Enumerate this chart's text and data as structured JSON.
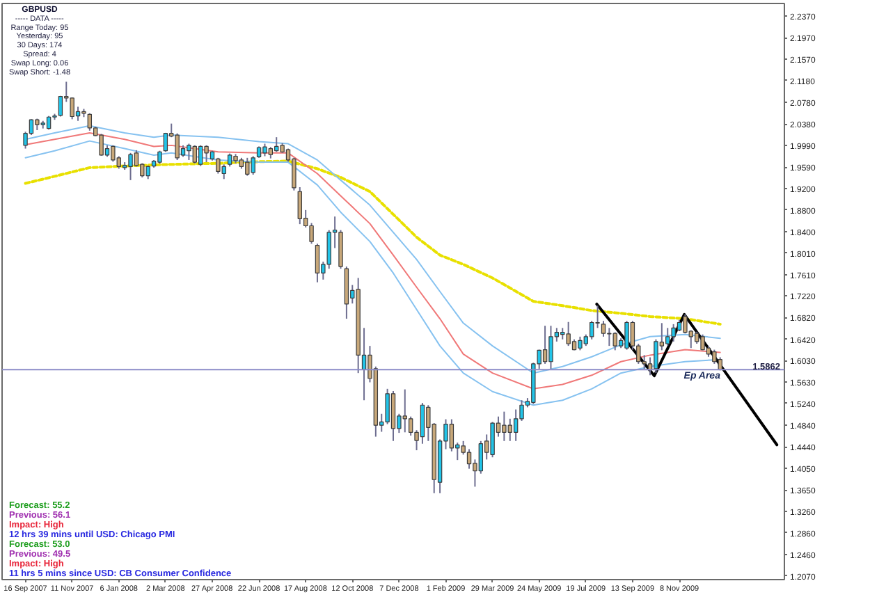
{
  "chart_data": {
    "type": "candlestick",
    "title": "GBPUSD",
    "x": [
      "2007-09-16",
      "2007-09-23",
      "2007-09-30",
      "2007-10-07",
      "2007-10-14",
      "2007-10-21",
      "2007-10-28",
      "2007-11-04",
      "2007-11-11",
      "2007-11-18",
      "2007-11-25",
      "2007-12-02",
      "2007-12-09",
      "2007-12-16",
      "2007-12-23",
      "2007-12-30",
      "2008-01-06",
      "2008-01-13",
      "2008-01-20",
      "2008-01-27",
      "2008-02-03",
      "2008-02-10",
      "2008-02-17",
      "2008-02-24",
      "2008-03-02",
      "2008-03-09",
      "2008-03-16",
      "2008-03-23",
      "2008-03-30",
      "2008-04-06",
      "2008-04-13",
      "2008-04-20",
      "2008-04-27",
      "2008-05-04",
      "2008-05-11",
      "2008-05-18",
      "2008-05-25",
      "2008-06-01",
      "2008-06-08",
      "2008-06-15",
      "2008-06-22",
      "2008-06-29",
      "2008-07-06",
      "2008-07-13",
      "2008-07-20",
      "2008-07-27",
      "2008-08-03",
      "2008-08-10",
      "2008-08-17",
      "2008-08-24",
      "2008-08-31",
      "2008-09-07",
      "2008-09-14",
      "2008-09-21",
      "2008-09-28",
      "2008-10-05",
      "2008-10-12",
      "2008-10-19",
      "2008-10-26",
      "2008-11-02",
      "2008-11-09",
      "2008-11-16",
      "2008-11-23",
      "2008-11-30",
      "2008-12-07",
      "2008-12-14",
      "2008-12-21",
      "2008-12-28",
      "2009-01-04",
      "2009-01-11",
      "2009-01-18",
      "2009-01-25",
      "2009-02-01",
      "2009-02-08",
      "2009-02-15",
      "2009-02-22",
      "2009-03-01",
      "2009-03-08",
      "2009-03-15",
      "2009-03-22",
      "2009-03-29",
      "2009-04-05",
      "2009-04-12",
      "2009-04-19",
      "2009-04-26",
      "2009-05-03",
      "2009-05-10",
      "2009-05-17",
      "2009-05-24",
      "2009-05-31",
      "2009-06-07",
      "2009-06-14",
      "2009-06-21",
      "2009-06-28",
      "2009-07-05",
      "2009-07-12",
      "2009-07-19",
      "2009-07-26",
      "2009-08-02",
      "2009-08-09",
      "2009-08-16",
      "2009-08-23",
      "2009-08-30",
      "2009-09-06",
      "2009-09-13",
      "2009-09-20",
      "2009-09-27",
      "2009-10-04",
      "2009-10-11",
      "2009-10-18",
      "2009-10-25",
      "2009-11-01",
      "2009-11-08",
      "2009-11-15",
      "2009-11-22",
      "2009-11-29",
      "2009-12-06",
      "2009-12-13",
      "2009-12-20",
      "2009-12-27"
    ],
    "ohlc": [
      [
        1.999,
        2.024,
        1.993,
        2.021
      ],
      [
        2.021,
        2.047,
        2.018,
        2.046
      ],
      [
        2.046,
        2.048,
        2.027,
        2.037
      ],
      [
        2.037,
        2.044,
        2.03,
        2.04
      ],
      [
        2.03,
        2.053,
        2.028,
        2.051
      ],
      [
        2.051,
        2.057,
        2.046,
        2.053
      ],
      [
        2.054,
        2.09,
        2.052,
        2.089
      ],
      [
        2.089,
        2.116,
        2.079,
        2.086
      ],
      [
        2.086,
        2.087,
        2.047,
        2.052
      ],
      [
        2.053,
        2.07,
        2.044,
        2.061
      ],
      [
        2.061,
        2.066,
        2.051,
        2.058
      ],
      [
        2.056,
        2.058,
        2.026,
        2.031
      ],
      [
        2.031,
        2.033,
        2.016,
        2.017
      ],
      [
        2.018,
        2.02,
        1.98,
        1.981
      ],
      [
        1.981,
        1.999,
        1.978,
        1.993
      ],
      [
        1.997,
        1.999,
        1.969,
        1.972
      ],
      [
        1.976,
        1.979,
        1.956,
        1.96
      ],
      [
        1.958,
        1.968,
        1.954,
        1.962
      ],
      [
        1.96,
        1.985,
        1.935,
        1.982
      ],
      [
        1.985,
        1.99,
        1.96,
        1.962
      ],
      [
        1.964,
        1.966,
        1.94,
        1.943
      ],
      [
        1.943,
        1.962,
        1.937,
        1.96
      ],
      [
        1.961,
        1.972,
        1.958,
        1.97
      ],
      [
        1.968,
        1.989,
        1.965,
        1.987
      ],
      [
        1.989,
        2.022,
        1.987,
        2.021
      ],
      [
        2.021,
        2.039,
        2.014,
        2.016
      ],
      [
        2.018,
        2.021,
        1.972,
        1.976
      ],
      [
        1.981,
        1.999,
        1.978,
        1.993
      ],
      [
        1.989,
        2.002,
        1.972,
        1.999
      ],
      [
        1.997,
        1.999,
        1.966,
        1.968
      ],
      [
        1.964,
        1.999,
        1.961,
        1.997
      ],
      [
        1.997,
        1.999,
        1.968,
        1.985
      ],
      [
        1.974,
        1.989,
        1.971,
        1.987
      ],
      [
        1.974,
        1.976,
        1.947,
        1.951
      ],
      [
        1.947,
        1.964,
        1.937,
        1.96
      ],
      [
        1.964,
        1.984,
        1.96,
        1.981
      ],
      [
        1.979,
        1.983,
        1.966,
        1.971
      ],
      [
        1.972,
        1.976,
        1.956,
        1.96
      ],
      [
        1.968,
        1.976,
        1.943,
        1.946
      ],
      [
        1.949,
        1.979,
        1.945,
        1.976
      ],
      [
        1.978,
        1.997,
        1.976,
        1.995
      ],
      [
        1.985,
        2.002,
        1.979,
        1.996
      ],
      [
        1.993,
        1.996,
        1.975,
        1.982
      ],
      [
        1.989,
        2.014,
        1.987,
        1.997
      ],
      [
        1.999,
        2.003,
        1.985,
        1.987
      ],
      [
        1.991,
        1.993,
        1.969,
        1.972
      ],
      [
        1.974,
        1.976,
        1.916,
        1.921
      ],
      [
        1.914,
        1.922,
        1.854,
        1.864
      ],
      [
        1.865,
        1.88,
        1.848,
        1.851
      ],
      [
        1.851,
        1.856,
        1.818,
        1.822
      ],
      [
        1.815,
        1.818,
        1.747,
        1.764
      ],
      [
        1.764,
        1.785,
        1.752,
        1.78
      ],
      [
        1.78,
        1.843,
        1.772,
        1.839
      ],
      [
        1.839,
        1.868,
        1.81,
        1.843
      ],
      [
        1.839,
        1.843,
        1.772,
        1.776
      ],
      [
        1.772,
        1.776,
        1.68,
        1.707
      ],
      [
        1.718,
        1.742,
        1.708,
        1.732
      ],
      [
        1.734,
        1.755,
        1.58,
        1.613
      ],
      [
        1.587,
        1.663,
        1.53,
        1.613
      ],
      [
        1.613,
        1.63,
        1.563,
        1.57
      ],
      [
        1.588,
        1.592,
        1.463,
        1.484
      ],
      [
        1.484,
        1.505,
        1.472,
        1.49
      ],
      [
        1.49,
        1.551,
        1.486,
        1.542
      ],
      [
        1.542,
        1.547,
        1.455,
        1.478
      ],
      [
        1.478,
        1.505,
        1.47,
        1.501
      ],
      [
        1.501,
        1.55,
        1.471,
        1.496
      ],
      [
        1.496,
        1.5,
        1.465,
        1.471
      ],
      [
        1.471,
        1.475,
        1.438,
        1.456
      ],
      [
        1.463,
        1.525,
        1.45,
        1.521
      ],
      [
        1.517,
        1.521,
        1.455,
        1.48
      ],
      [
        1.486,
        1.488,
        1.359,
        1.384
      ],
      [
        1.379,
        1.458,
        1.359,
        1.455
      ],
      [
        1.455,
        1.495,
        1.44,
        1.486
      ],
      [
        1.486,
        1.495,
        1.436,
        1.442
      ],
      [
        1.442,
        1.452,
        1.42,
        1.448
      ],
      [
        1.446,
        1.455,
        1.43,
        1.434
      ],
      [
        1.434,
        1.44,
        1.404,
        1.413
      ],
      [
        1.414,
        1.421,
        1.371,
        1.4
      ],
      [
        1.4,
        1.455,
        1.395,
        1.45
      ],
      [
        1.455,
        1.467,
        1.421,
        1.434
      ],
      [
        1.43,
        1.49,
        1.425,
        1.488
      ],
      [
        1.488,
        1.5,
        1.463,
        1.471
      ],
      [
        1.484,
        1.509,
        1.455,
        1.471
      ],
      [
        1.484,
        1.496,
        1.455,
        1.471
      ],
      [
        1.471,
        1.513,
        1.455,
        1.496
      ],
      [
        1.496,
        1.53,
        1.492,
        1.521
      ],
      [
        1.521,
        1.534,
        1.517,
        1.528
      ],
      [
        1.526,
        1.599,
        1.523,
        1.597
      ],
      [
        1.597,
        1.623,
        1.588,
        1.622
      ],
      [
        1.623,
        1.667,
        1.597,
        1.601
      ],
      [
        1.601,
        1.667,
        1.588,
        1.647
      ],
      [
        1.647,
        1.663,
        1.638,
        1.655
      ],
      [
        1.651,
        1.663,
        1.642,
        1.655
      ],
      [
        1.652,
        1.674,
        1.63,
        1.634
      ],
      [
        1.638,
        1.642,
        1.622,
        1.623
      ],
      [
        1.626,
        1.647,
        1.622,
        1.64
      ],
      [
        1.634,
        1.651,
        1.63,
        1.647
      ],
      [
        1.647,
        1.676,
        1.642,
        1.673
      ],
      [
        1.673,
        1.704,
        1.663,
        1.672
      ],
      [
        1.67,
        1.676,
        1.647,
        1.653
      ],
      [
        1.653,
        1.663,
        1.63,
        1.652
      ],
      [
        1.653,
        1.655,
        1.622,
        1.63
      ],
      [
        1.63,
        1.644,
        1.626,
        1.64
      ],
      [
        1.626,
        1.676,
        1.623,
        1.673
      ],
      [
        1.673,
        1.676,
        1.623,
        1.63
      ],
      [
        1.63,
        1.634,
        1.597,
        1.601
      ],
      [
        1.601,
        1.613,
        1.588,
        1.597
      ],
      [
        1.597,
        1.609,
        1.576,
        1.586
      ],
      [
        1.588,
        1.642,
        1.58,
        1.638
      ],
      [
        1.637,
        1.672,
        1.622,
        1.63
      ],
      [
        1.634,
        1.663,
        1.63,
        1.647
      ],
      [
        1.647,
        1.67,
        1.638,
        1.663
      ],
      [
        1.659,
        1.678,
        1.657,
        1.673
      ],
      [
        1.684,
        1.688,
        1.653,
        1.655
      ],
      [
        1.657,
        1.659,
        1.626,
        1.647
      ],
      [
        1.653,
        1.656,
        1.634,
        1.638
      ],
      [
        1.647,
        1.651,
        1.622,
        1.623
      ],
      [
        1.626,
        1.63,
        1.61,
        1.615
      ],
      [
        1.619,
        1.623,
        1.597,
        1.601
      ],
      [
        1.605,
        1.609,
        1.585,
        1.5862
      ]
    ],
    "colors": [
      "#22c4e8",
      "#22c4e8",
      "#c8a87a",
      "#22c4e8",
      "#22c4e8",
      "#22c4e8",
      "#22c4e8",
      "#c8a87a",
      "#c8a87a",
      "#22c4e8",
      "#c8a87a",
      "#c8a87a",
      "#c8a87a",
      "#c8a87a",
      "#22c4e8",
      "#c8a87a",
      "#c8a87a",
      "#22c4e8",
      "#22c4e8",
      "#c8a87a",
      "#c8a87a",
      "#22c4e8",
      "#22c4e8",
      "#22c4e8",
      "#22c4e8",
      "#c8a87a",
      "#c8a87a",
      "#22c4e8",
      "#22c4e8",
      "#c8a87a",
      "#22c4e8",
      "#c8a87a",
      "#22c4e8",
      "#c8a87a",
      "#22c4e8",
      "#22c4e8",
      "#c8a87a",
      "#c8a87a",
      "#c8a87a",
      "#22c4e8",
      "#22c4e8",
      "#22c4e8",
      "#c8a87a",
      "#22c4e8",
      "#c8a87a",
      "#c8a87a",
      "#c8a87a",
      "#c8a87a",
      "#c8a87a",
      "#c8a87a",
      "#c8a87a",
      "#22c4e8",
      "#22c4e8",
      "#22c4e8",
      "#c8a87a",
      "#c8a87a",
      "#22c4e8",
      "#c8a87a",
      "#22c4e8",
      "#c8a87a",
      "#c8a87a",
      "#22c4e8",
      "#22c4e8",
      "#c8a87a",
      "#22c4e8",
      "#c8a87a",
      "#c8a87a",
      "#c8a87a",
      "#22c4e8",
      "#c8a87a",
      "#c8a87a",
      "#22c4e8",
      "#22c4e8",
      "#c8a87a",
      "#22c4e8",
      "#c8a87a",
      "#c8a87a",
      "#c8a87a",
      "#22c4e8",
      "#c8a87a",
      "#22c4e8",
      "#c8a87a",
      "#c8a87a",
      "#c8a87a",
      "#22c4e8",
      "#22c4e8",
      "#22c4e8",
      "#22c4e8",
      "#22c4e8",
      "#c8a87a",
      "#22c4e8",
      "#22c4e8",
      "#22c4e8",
      "#c8a87a",
      "#c8a87a",
      "#22c4e8",
      "#22c4e8",
      "#22c4e8",
      "#c8a87a",
      "#c8a87a",
      "#c8a87a",
      "#c8a87a",
      "#22c4e8",
      "#22c4e8",
      "#c8a87a",
      "#c8a87a",
      "#c8a87a",
      "#c8a87a",
      "#22c4e8",
      "#c8a87a",
      "#22c4e8",
      "#22c4e8",
      "#22c4e8",
      "#c8a87a",
      "#c8a87a",
      "#c8a87a",
      "#c8a87a",
      "#c8a87a",
      "#c8a87a",
      "#c8a87a"
    ],
    "series": [
      {
        "type": "line",
        "color": "#e8e000",
        "line_style": "dotted",
        "x": [
          "2007-09-16",
          "2007-10-21",
          "2007-12-02",
          "2008-01-13",
          "2008-02-17",
          "2008-03-09",
          "2008-05-04",
          "2008-06-22",
          "2008-07-27",
          "2008-08-31",
          "2008-09-28",
          "2008-11-02",
          "2008-11-30",
          "2008-12-28",
          "2009-01-25",
          "2009-02-22",
          "2009-03-29",
          "2009-05-17",
          "2009-06-21",
          "2009-07-26",
          "2009-08-30",
          "2009-10-04",
          "2009-11-15",
          "2009-12-27"
        ],
        "values": [
          1.929,
          1.942,
          1.958,
          1.961,
          1.963,
          1.964,
          1.966,
          1.969,
          1.97,
          1.956,
          1.94,
          1.914,
          1.872,
          1.83,
          1.797,
          1.78,
          1.755,
          1.712,
          1.704,
          1.695,
          1.69,
          1.684,
          1.68,
          1.67
        ]
      },
      {
        "type": "line",
        "color": "#86c2f0",
        "x": [
          "2007-09-16",
          "2007-10-21",
          "2007-12-02",
          "2008-01-13",
          "2008-02-17",
          "2008-03-09",
          "2008-05-04",
          "2008-06-22",
          "2008-07-27",
          "2008-08-31",
          "2008-09-28",
          "2008-11-02",
          "2008-11-30",
          "2008-12-28",
          "2009-01-25",
          "2009-02-22",
          "2009-03-29",
          "2009-05-17",
          "2009-06-21",
          "2009-07-26",
          "2009-08-30",
          "2009-10-04",
          "2009-11-15",
          "2009-12-27"
        ],
        "values": [
          2.01,
          2.022,
          2.035,
          2.022,
          2.014,
          2.018,
          2.014,
          2.006,
          2.002,
          1.972,
          1.935,
          1.889,
          1.839,
          1.789,
          1.73,
          1.672,
          1.63,
          1.58,
          1.592,
          1.61,
          1.632,
          1.647,
          1.651,
          1.644
        ]
      },
      {
        "type": "line",
        "color": "#f07878",
        "x": [
          "2007-09-16",
          "2007-10-21",
          "2007-12-02",
          "2008-01-13",
          "2008-02-17",
          "2008-03-09",
          "2008-05-04",
          "2008-06-22",
          "2008-07-27",
          "2008-08-31",
          "2008-09-28",
          "2008-11-02",
          "2008-11-30",
          "2008-12-28",
          "2009-01-25",
          "2009-02-22",
          "2009-03-29",
          "2009-05-17",
          "2009-06-21",
          "2009-07-26",
          "2009-08-30",
          "2009-10-04",
          "2009-11-15",
          "2009-12-27"
        ],
        "values": [
          2.0,
          2.01,
          2.022,
          2.01,
          1.997,
          1.999,
          1.987,
          1.985,
          1.985,
          1.947,
          1.906,
          1.855,
          1.797,
          1.738,
          1.68,
          1.615,
          1.58,
          1.551,
          1.559,
          1.576,
          1.601,
          1.613,
          1.623,
          1.618
        ]
      },
      {
        "type": "line",
        "color": "#86c2f0",
        "x": [
          "2007-09-16",
          "2007-10-21",
          "2007-12-02",
          "2008-01-13",
          "2008-02-17",
          "2008-03-09",
          "2008-05-04",
          "2008-06-22",
          "2008-07-27",
          "2008-08-31",
          "2008-09-28",
          "2008-11-02",
          "2008-11-30",
          "2008-12-28",
          "2009-01-25",
          "2009-02-22",
          "2009-03-29",
          "2009-05-17",
          "2009-06-21",
          "2009-07-26",
          "2009-08-30",
          "2009-10-04",
          "2009-11-15",
          "2009-12-27"
        ],
        "values": [
          1.976,
          1.989,
          2.007,
          1.993,
          1.981,
          1.985,
          1.972,
          1.968,
          1.968,
          1.926,
          1.876,
          1.822,
          1.764,
          1.697,
          1.63,
          1.58,
          1.546,
          1.521,
          1.53,
          1.551,
          1.58,
          1.592,
          1.601,
          1.605
        ]
      },
      {
        "type": "line",
        "color": "#000000",
        "x": [
          "2009-08-01",
          "2009-10-09",
          "2009-11-14",
          "2010-03-05"
        ],
        "values": [
          1.707,
          1.575,
          1.688,
          1.448
        ]
      }
    ],
    "xlim": [
      "2007-08-19",
      "2010-03-14"
    ],
    "ylim": [
      1.2,
      2.26
    ],
    "xticks": [
      {
        "value": "2007-09-16",
        "label": "16 Sep 2007"
      },
      {
        "value": "2007-11-11",
        "label": "11 Nov 2007"
      },
      {
        "value": "2008-01-06",
        "label": "6 Jan 2008"
      },
      {
        "value": "2008-03-02",
        "label": "2 Mar 2008"
      },
      {
        "value": "2008-04-27",
        "label": "27 Apr 2008"
      },
      {
        "value": "2008-06-22",
        "label": "22 Jun 2008"
      },
      {
        "value": "2008-08-17",
        "label": "17 Aug 2008"
      },
      {
        "value": "2008-10-12",
        "label": "12 Oct 2008"
      },
      {
        "value": "2008-12-07",
        "label": "7 Dec 2008"
      },
      {
        "value": "2009-02-01",
        "label": "1 Feb 2009"
      },
      {
        "value": "2009-03-29",
        "label": "29 Mar 2009"
      },
      {
        "value": "2009-05-24",
        "label": "24 May 2009"
      },
      {
        "value": "2009-07-19",
        "label": "19 Jul 2009"
      },
      {
        "value": "2009-09-13",
        "label": "13 Sep 2009"
      },
      {
        "value": "2009-11-08",
        "label": "8 Nov 2009"
      }
    ],
    "yticks": [
      {
        "value": 2.237,
        "label": "2.2370"
      },
      {
        "value": 2.197,
        "label": "2.1970"
      },
      {
        "value": 2.157,
        "label": "2.1570"
      },
      {
        "value": 2.118,
        "label": "2.1180"
      },
      {
        "value": 2.078,
        "label": "2.0780"
      },
      {
        "value": 2.038,
        "label": "2.0380"
      },
      {
        "value": 1.999,
        "label": "1.9990"
      },
      {
        "value": 1.959,
        "label": "1.9590"
      },
      {
        "value": 1.92,
        "label": "1.9200"
      },
      {
        "value": 1.88,
        "label": "1.8800"
      },
      {
        "value": 1.84,
        "label": "1.8400"
      },
      {
        "value": 1.801,
        "label": "1.8010"
      },
      {
        "value": 1.761,
        "label": "1.7610"
      },
      {
        "value": 1.722,
        "label": "1.7220"
      },
      {
        "value": 1.682,
        "label": "1.6820"
      },
      {
        "value": 1.642,
        "label": "1.6420"
      },
      {
        "value": 1.603,
        "label": "1.6030"
      },
      {
        "value": 1.563,
        "label": "1.5630"
      },
      {
        "value": 1.524,
        "label": "1.5240"
      },
      {
        "value": 1.484,
        "label": "1.4840"
      },
      {
        "value": 1.444,
        "label": "1.4440"
      },
      {
        "value": 1.405,
        "label": "1.4050"
      },
      {
        "value": 1.365,
        "label": "1.3650"
      },
      {
        "value": 1.326,
        "label": "1.3260"
      },
      {
        "value": 1.286,
        "label": "1.2860"
      },
      {
        "value": 1.246,
        "label": "1.2460"
      },
      {
        "value": 1.207,
        "label": "1.2070"
      }
    ],
    "ref_lines": [
      {
        "axis": "y",
        "value": 1.5862,
        "label": "1.5862",
        "color": "#8c8cc8"
      }
    ],
    "annotations": [
      "----- DATA -----",
      "Range Today: 95",
      "Yesterday: 95",
      "30 Days: 174",
      "Spread: 4",
      "Swap Long: 0.06",
      "Swap Short: -1.48",
      "Ep Area",
      "Forecast: 55.2",
      "Previous: 56.1",
      "Impact: High",
      "12 hrs 39 mins until USD: Chicago PMI",
      "Forecast: 53.0",
      "Previous: 49.5",
      "Impact: High",
      "11 hrs 5 mins since USD: CB Consumer Confidence"
    ]
  }
}
